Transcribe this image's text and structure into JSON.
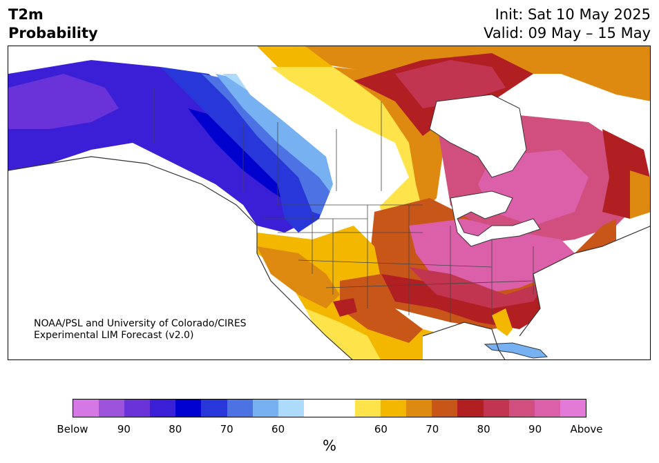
{
  "header": {
    "variable": "T2m\nProbability",
    "init": "Init: Sat 10 May 2025",
    "valid": "Valid: 09 May – 15 May"
  },
  "credit": {
    "line1": "NOAA/PSL and University of Colorado/CIRES",
    "line2": "Experimental LIM Forecast (v2.0)"
  },
  "legend": {
    "colors": [
      "#d677e6",
      "#9e53dc",
      "#6a33d9",
      "#3b1fd6",
      "#0000cf",
      "#2737d9",
      "#4c72e4",
      "#77b1f1",
      "#aedbfb",
      "#ffffff",
      "#ffffff",
      "#fee44a",
      "#f3b700",
      "#de8a10",
      "#c85618",
      "#b21f22",
      "#c13550",
      "#d04f7e",
      "#dc5fa9",
      "#e47ad7"
    ],
    "tick_labels": [
      "Below",
      "90",
      "80",
      "70",
      "60",
      "60",
      "70",
      "80",
      "90",
      "Above"
    ],
    "unit": "%"
  },
  "map_regions": [
    {
      "name": "alaska-cold-core",
      "category": "below 80-90",
      "color": "#3b1fd6"
    },
    {
      "name": "pacific-northwest-cold",
      "category": "below 70-80",
      "color": "#2737d9"
    },
    {
      "name": "northern-plains-neutral",
      "category": "neutral",
      "color": "#ffffff"
    },
    {
      "name": "southwest-warm",
      "category": "above 60-70",
      "color": "#f3b700"
    },
    {
      "name": "texas-warm",
      "category": "above 70-80",
      "color": "#c85618"
    },
    {
      "name": "great-lakes-warm",
      "category": "above 90",
      "color": "#dc5fa9"
    },
    {
      "name": "southeast-warm",
      "category": "above 80-90",
      "color": "#b21f22"
    },
    {
      "name": "quebec-warm",
      "category": "above 90",
      "color": "#d04f7e"
    },
    {
      "name": "arctic-warm",
      "category": "above 60-70",
      "color": "#de8a10"
    }
  ]
}
